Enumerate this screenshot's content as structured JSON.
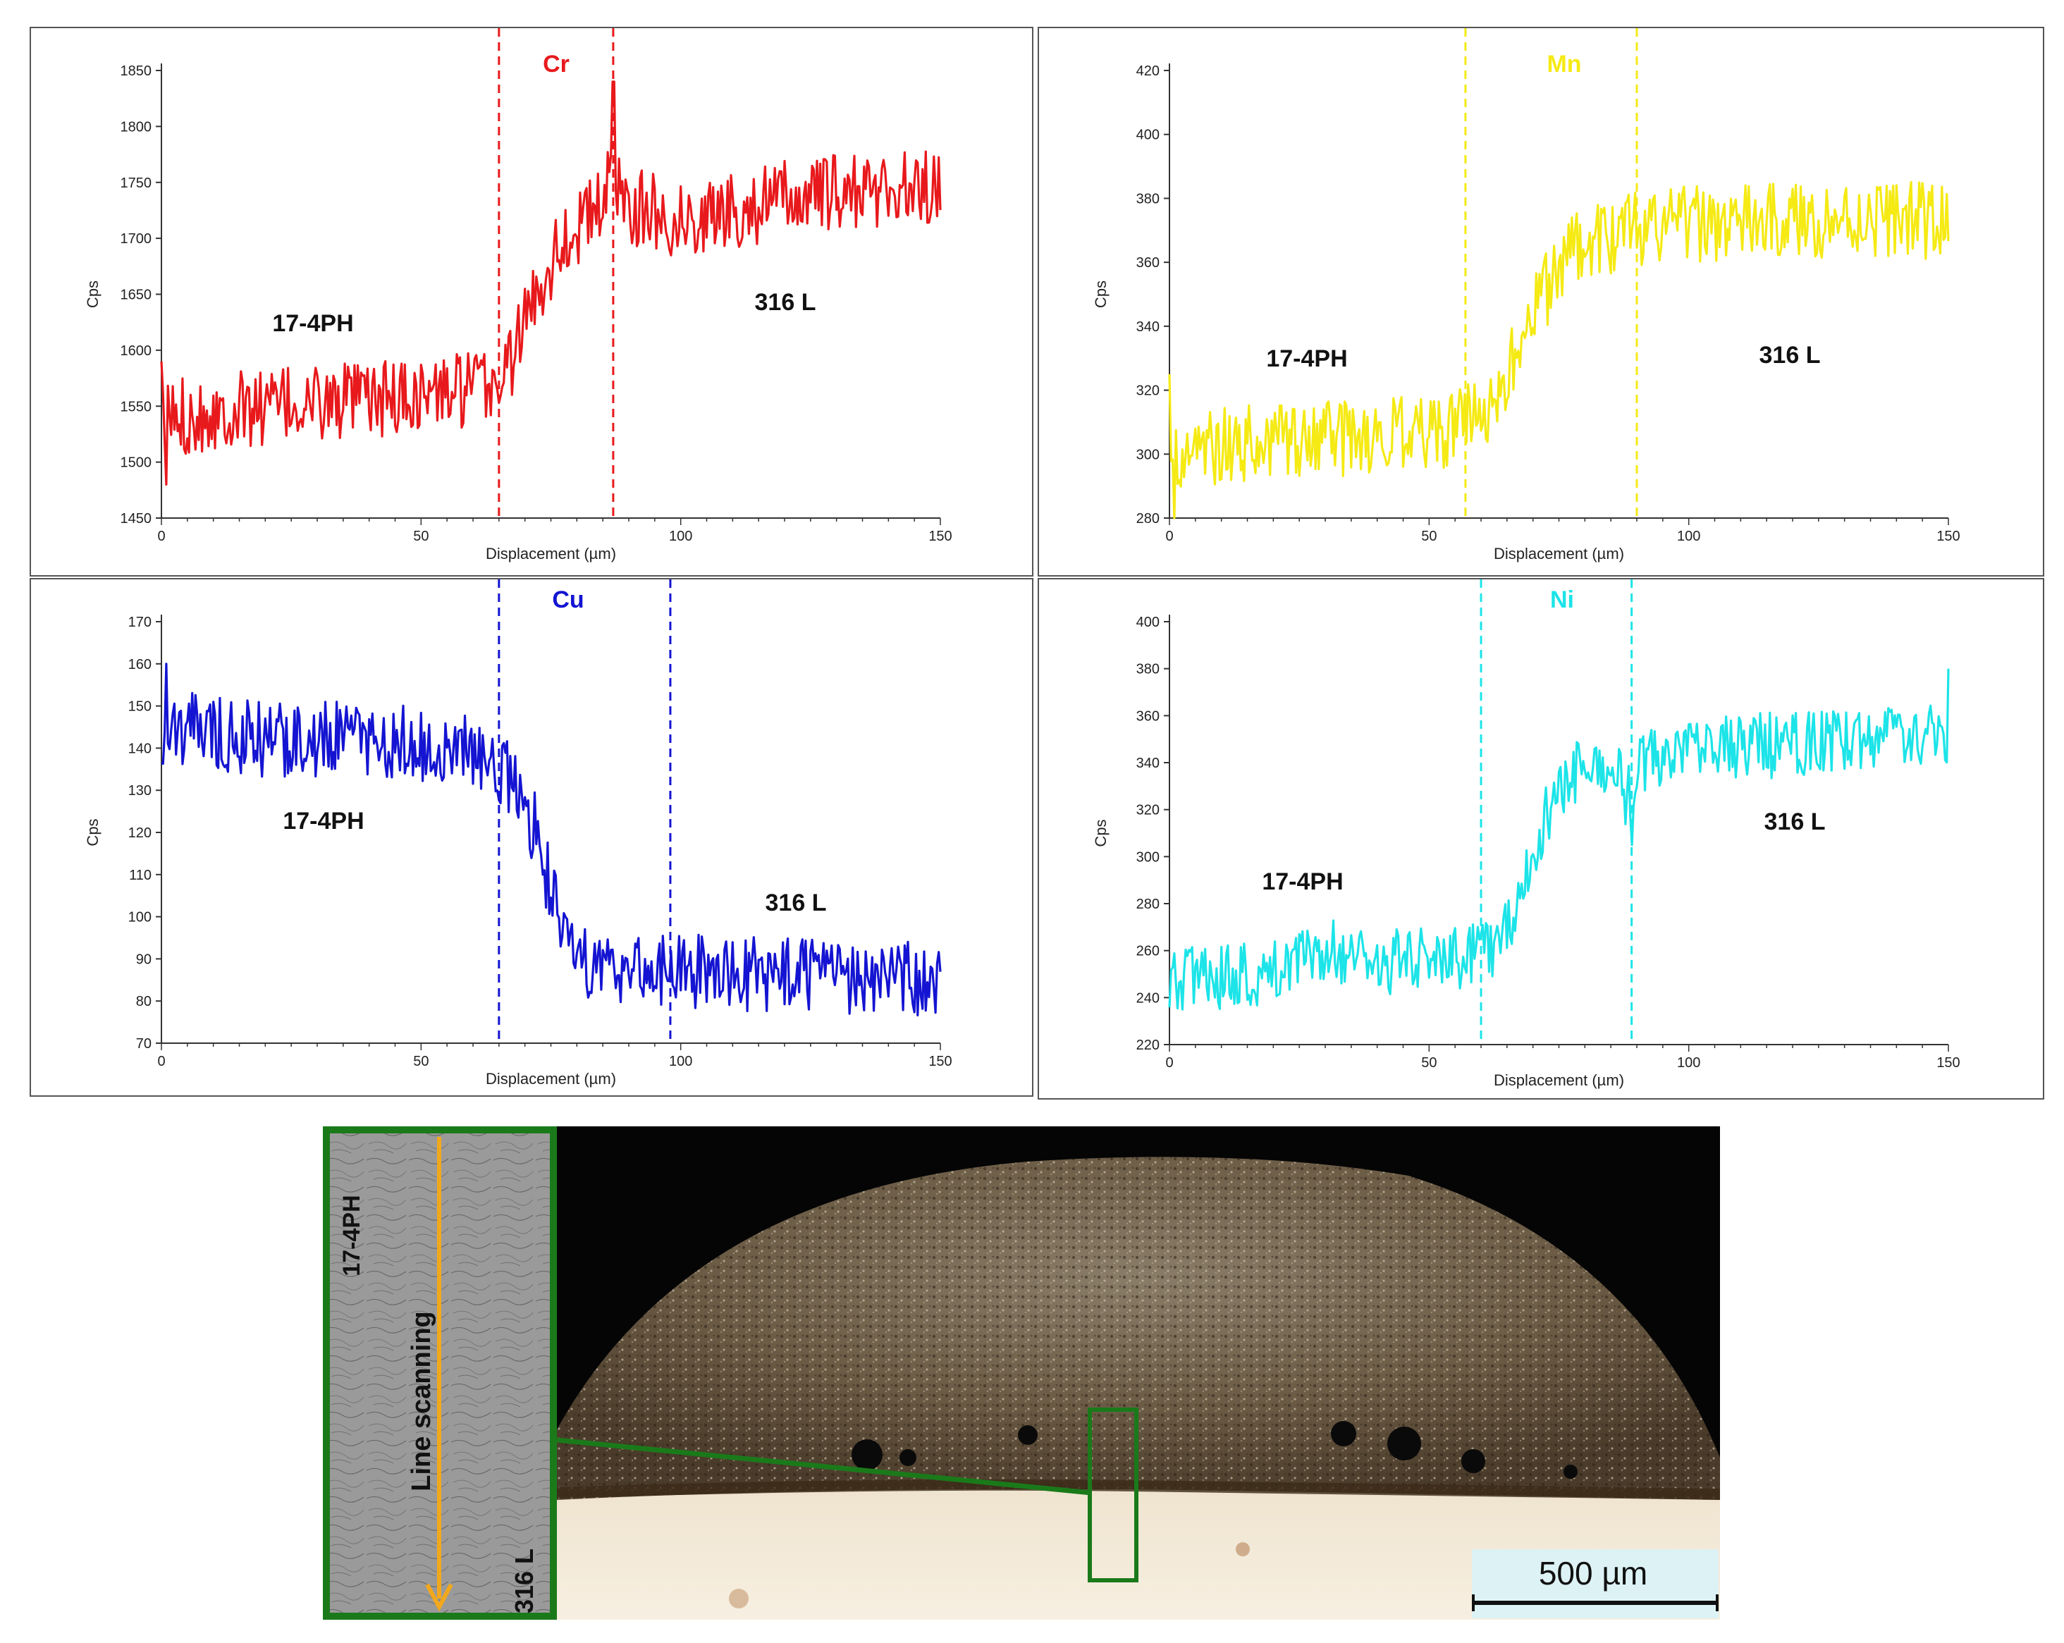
{
  "chart_data": [
    {
      "type": "line",
      "title": "Cr",
      "color": "#e8191c",
      "xlabel": "Displacement (µm)",
      "ylabel": "Cps",
      "xlim": [
        0,
        150
      ],
      "ylim": [
        1450,
        1850
      ],
      "xticks": [
        0,
        50,
        100,
        150
      ],
      "yticks": [
        1450,
        1500,
        1550,
        1600,
        1650,
        1700,
        1750,
        1800,
        1850
      ],
      "vlines": [
        65,
        87
      ],
      "vline_color": "#e8191c",
      "annotations": [
        "17-4PH",
        "316 L"
      ],
      "profile": [
        [
          0,
          1540
        ],
        [
          20,
          1550
        ],
        [
          40,
          1555
        ],
        [
          60,
          1565
        ],
        [
          65,
          1570
        ],
        [
          68,
          1600
        ],
        [
          72,
          1650
        ],
        [
          76,
          1690
        ],
        [
          80,
          1710
        ],
        [
          85,
          1730
        ],
        [
          87,
          1760
        ],
        [
          90,
          1730
        ],
        [
          100,
          1715
        ],
        [
          110,
          1725
        ],
        [
          120,
          1735
        ],
        [
          130,
          1740
        ],
        [
          140,
          1745
        ],
        [
          150,
          1745
        ]
      ],
      "noise": 35,
      "spikes": [
        [
          87,
          1840
        ],
        [
          0,
          1590
        ],
        [
          1,
          1480
        ]
      ]
    },
    {
      "type": "line",
      "title": "Mn",
      "color": "#f5ea14",
      "xlabel": "Displacement (µm)",
      "ylabel": "Cps",
      "xlim": [
        0,
        150
      ],
      "ylim": [
        280,
        420
      ],
      "xticks": [
        0,
        50,
        100,
        150
      ],
      "yticks": [
        280,
        300,
        320,
        340,
        360,
        380,
        400,
        420
      ],
      "vlines": [
        57,
        90
      ],
      "vline_color": "#f5ea14",
      "annotations": [
        "17-4PH",
        "316 L"
      ],
      "profile": [
        [
          0,
          300
        ],
        [
          20,
          305
        ],
        [
          40,
          305
        ],
        [
          55,
          308
        ],
        [
          62,
          315
        ],
        [
          66,
          330
        ],
        [
          70,
          345
        ],
        [
          74,
          355
        ],
        [
          78,
          365
        ],
        [
          85,
          368
        ],
        [
          90,
          370
        ],
        [
          100,
          372
        ],
        [
          120,
          373
        ],
        [
          140,
          374
        ],
        [
          150,
          372
        ]
      ],
      "noise": 12,
      "spikes": [
        [
          0,
          325
        ],
        [
          1,
          280
        ]
      ]
    },
    {
      "type": "line",
      "title": "Cu",
      "color": "#1414d2",
      "xlabel": "Displacement (µm)",
      "ylabel": "Cps",
      "xlim": [
        0,
        150
      ],
      "ylim": [
        70,
        170
      ],
      "xticks": [
        0,
        50,
        100,
        150
      ],
      "yticks": [
        70,
        80,
        90,
        100,
        110,
        120,
        130,
        140,
        150,
        160,
        170
      ],
      "vlines": [
        65,
        98
      ],
      "vline_color": "#1414d2",
      "annotations": [
        "17-4PH",
        "316 L"
      ],
      "profile": [
        [
          0,
          145
        ],
        [
          20,
          142
        ],
        [
          40,
          142
        ],
        [
          58,
          140
        ],
        [
          63,
          138
        ],
        [
          67,
          132
        ],
        [
          70,
          126
        ],
        [
          73,
          118
        ],
        [
          75,
          105
        ],
        [
          78,
          92
        ],
        [
          85,
          88
        ],
        [
          100,
          87
        ],
        [
          120,
          86
        ],
        [
          140,
          85
        ],
        [
          150,
          86
        ]
      ],
      "noise": 9,
      "spikes": [
        [
          1,
          160
        ]
      ]
    },
    {
      "type": "line",
      "title": "Ni",
      "color": "#1ce4e8",
      "xlabel": "Displacement (µm)",
      "ylabel": "Cps",
      "xlim": [
        0,
        150
      ],
      "ylim": [
        220,
        400
      ],
      "xticks": [
        0,
        50,
        100,
        150
      ],
      "yticks": [
        220,
        240,
        260,
        280,
        300,
        320,
        340,
        360,
        380,
        400
      ],
      "vlines": [
        60,
        89
      ],
      "vline_color": "#1ce4e8",
      "annotations": [
        "17-4PH",
        "316 L"
      ],
      "profile": [
        [
          0,
          248
        ],
        [
          20,
          250
        ],
        [
          28,
          262
        ],
        [
          40,
          255
        ],
        [
          60,
          258
        ],
        [
          64,
          265
        ],
        [
          68,
          285
        ],
        [
          71,
          310
        ],
        [
          76,
          330
        ],
        [
          80,
          340
        ],
        [
          86,
          335
        ],
        [
          88,
          325
        ],
        [
          90,
          340
        ],
        [
          100,
          345
        ],
        [
          120,
          348
        ],
        [
          140,
          350
        ],
        [
          150,
          352
        ]
      ],
      "noise": 14,
      "spikes": [
        [
          150,
          380
        ],
        [
          89,
          305
        ]
      ]
    }
  ],
  "micrograph": {
    "inset_top_label": "17-4PH",
    "inset_bottom_label": "316 L",
    "inset_arrow_label": "Line scanning",
    "scale_bar_label": "500 µm"
  }
}
